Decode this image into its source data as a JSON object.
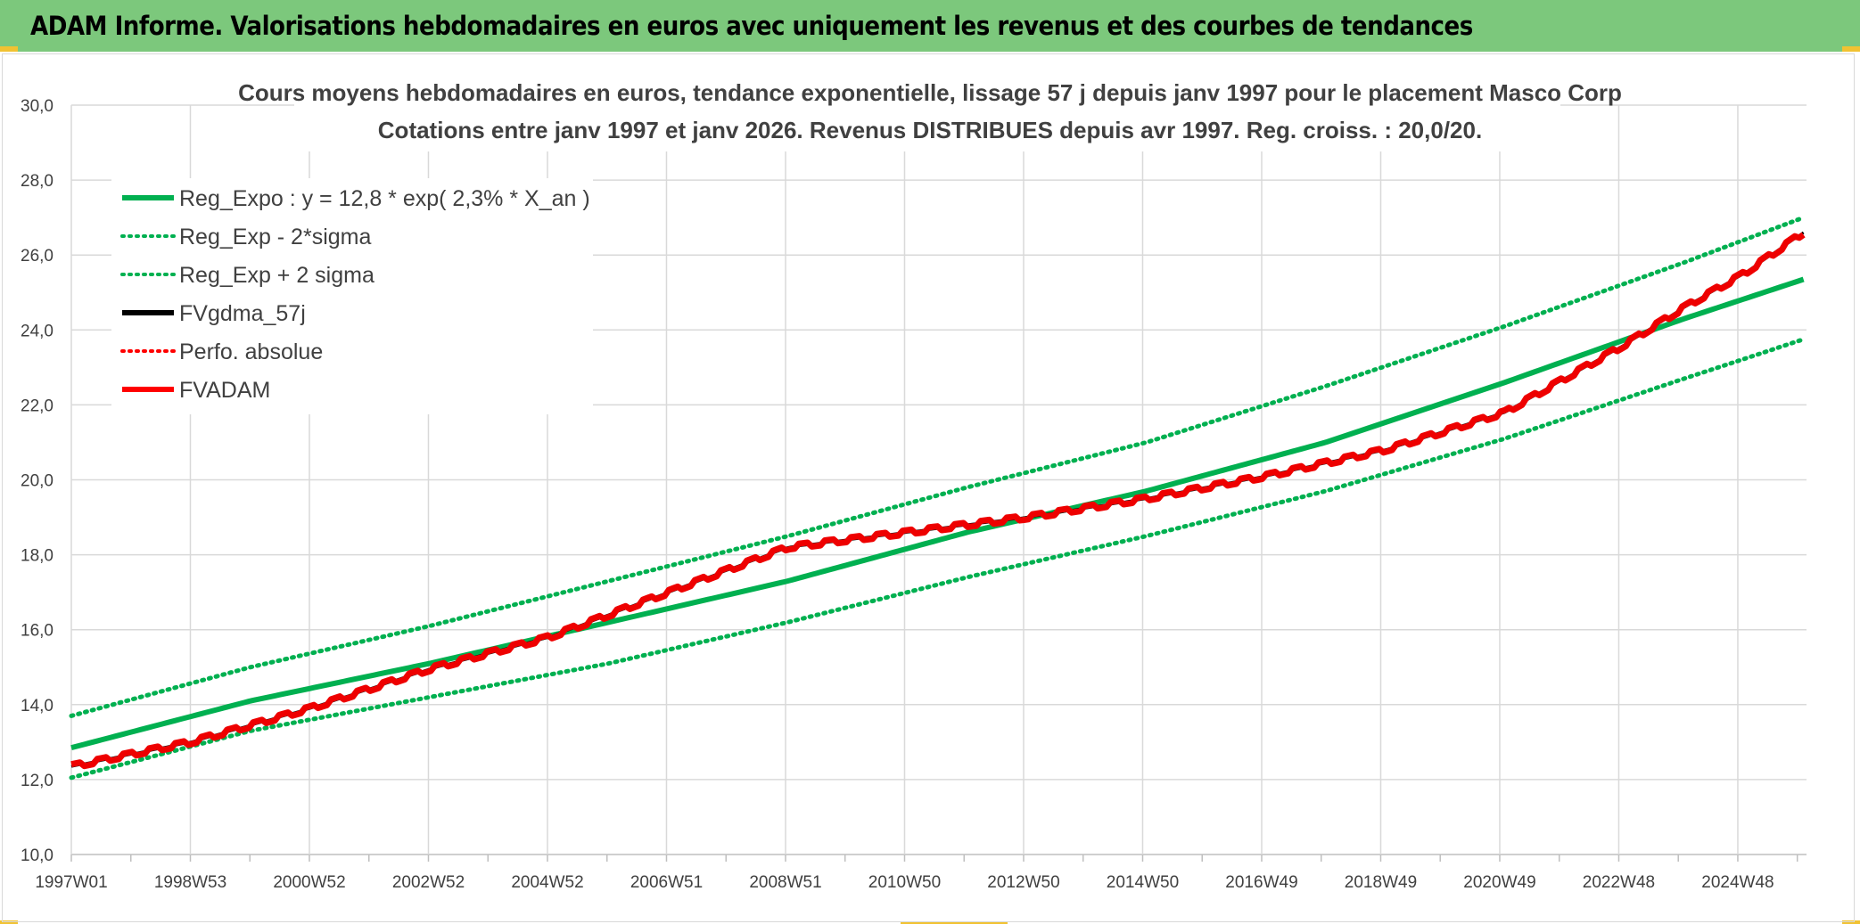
{
  "banner": {
    "title": "ADAM Informe. Valorisations hebdomadaires en euros avec uniquement les revenus et des courbes de tendances",
    "color": "#7cc87c"
  },
  "chart_data": {
    "type": "line",
    "title_lines": [
      "Cours moyens hebdomadaires en euros, tendance exponentielle, lissage 57 j depuis janv 1997 pour le placement Masco Corp",
      "Cotations entre janv 1997 et janv 2026. Revenus DISTRIBUES depuis avr 1997. Reg. croiss. : 20,0/20."
    ],
    "x_tick_labels": [
      "1997W01",
      "1998W53",
      "2000W52",
      "2002W52",
      "2004W52",
      "2006W51",
      "2008W51",
      "2010W50",
      "2012W50",
      "2014W50",
      "2016W49",
      "2018W49",
      "2020W49",
      "2022W48",
      "2024W48"
    ],
    "x_range_years": [
      1997.0,
      2026.05
    ],
    "y_tick_labels": [
      "10,0",
      "12,0",
      "14,0",
      "16,0",
      "18,0",
      "20,0",
      "22,0",
      "24,0",
      "26,0",
      "28,0",
      "30,0"
    ],
    "ylim": [
      10,
      30
    ],
    "grid": true,
    "legend_position": "top-left",
    "legend": [
      {
        "label": "Reg_Expo : y = 12,8 * exp( 2,3% *  X_an )",
        "color": "#00b050",
        "style": "solid"
      },
      {
        "label": "Reg_Exp - 2*sigma",
        "color": "#00b050",
        "style": "dotted"
      },
      {
        "label": "Reg_Exp + 2 sigma",
        "color": "#00b050",
        "style": "dotted"
      },
      {
        "label": "FVgdma_57j",
        "color": "#000000",
        "style": "solid"
      },
      {
        "label": "Perfo. absolue",
        "color": "#ff0000",
        "style": "dotted"
      },
      {
        "label": "FVADAM",
        "color": "#ff0000",
        "style": "solid"
      }
    ],
    "series": [
      {
        "name": "Reg_Expo : y = 12,8 * exp( 2,3% *  X_an )",
        "x": [
          1997,
          2000,
          2003,
          2006,
          2009,
          2012,
          2015,
          2018,
          2021,
          2024,
          2026
        ],
        "y": [
          12.85,
          14.1,
          15.1,
          16.2,
          17.3,
          18.6,
          19.7,
          21.0,
          22.6,
          24.3,
          25.35
        ]
      },
      {
        "name": "Reg_Exp - 2*sigma",
        "x": [
          1997,
          2000,
          2003,
          2006,
          2009,
          2012,
          2015,
          2018,
          2021,
          2024,
          2026
        ],
        "y": [
          12.05,
          13.3,
          14.2,
          15.1,
          16.2,
          17.4,
          18.5,
          19.7,
          21.1,
          22.7,
          23.75
        ]
      },
      {
        "name": "Reg_Exp + 2 sigma",
        "x": [
          1997,
          2000,
          2003,
          2006,
          2009,
          2012,
          2015,
          2018,
          2021,
          2024,
          2026
        ],
        "y": [
          13.7,
          15.0,
          16.1,
          17.3,
          18.5,
          19.8,
          21.0,
          22.5,
          24.1,
          25.8,
          27.0
        ]
      },
      {
        "name": "FVgdma_57j",
        "x": [
          1997,
          1999,
          2001,
          2003,
          2005,
          2007,
          2009,
          2011,
          2013,
          2015,
          2017,
          2019,
          2021,
          2023,
          2024,
          2025,
          2026
        ],
        "y": [
          12.35,
          13.0,
          13.9,
          14.95,
          15.8,
          17.0,
          18.2,
          18.6,
          19.0,
          19.5,
          20.1,
          20.8,
          21.8,
          23.6,
          24.6,
          25.5,
          26.6
        ]
      },
      {
        "name": "FVADAM",
        "x": [
          1997,
          1999,
          2001,
          2003,
          2005,
          2007,
          2009,
          2011,
          2013,
          2015,
          2017,
          2019,
          2021,
          2023,
          2024,
          2025,
          2026
        ],
        "y": [
          12.35,
          13.0,
          13.9,
          14.95,
          15.8,
          17.0,
          18.2,
          18.6,
          19.0,
          19.5,
          20.1,
          20.8,
          21.8,
          23.6,
          24.6,
          25.5,
          26.6
        ]
      }
    ]
  }
}
